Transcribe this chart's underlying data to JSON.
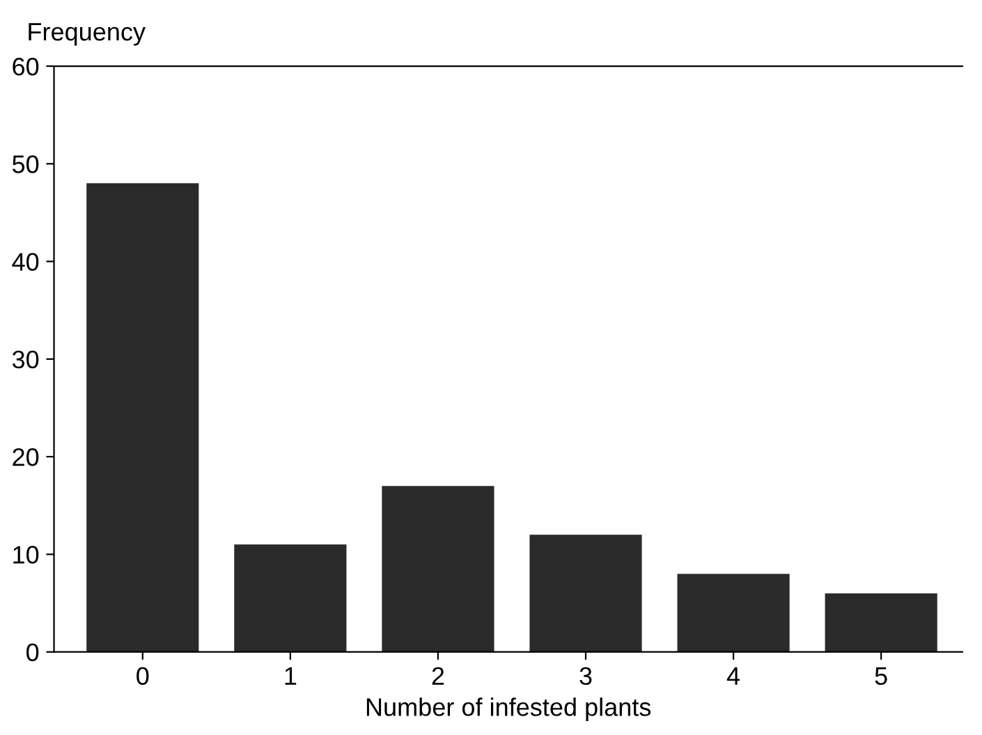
{
  "chart_data": {
    "type": "bar",
    "xlabel": "Number of infested plants",
    "ylabel": "Frequency",
    "categories": [
      "0",
      "1",
      "2",
      "3",
      "4",
      "5"
    ],
    "values": [
      48,
      11,
      17,
      12,
      8,
      6
    ],
    "color": "#2a2a2a",
    "ylim": [
      0,
      60
    ],
    "yticks": [
      0,
      10,
      20,
      30,
      40,
      50,
      60
    ],
    "grid": false,
    "legend": false
  }
}
